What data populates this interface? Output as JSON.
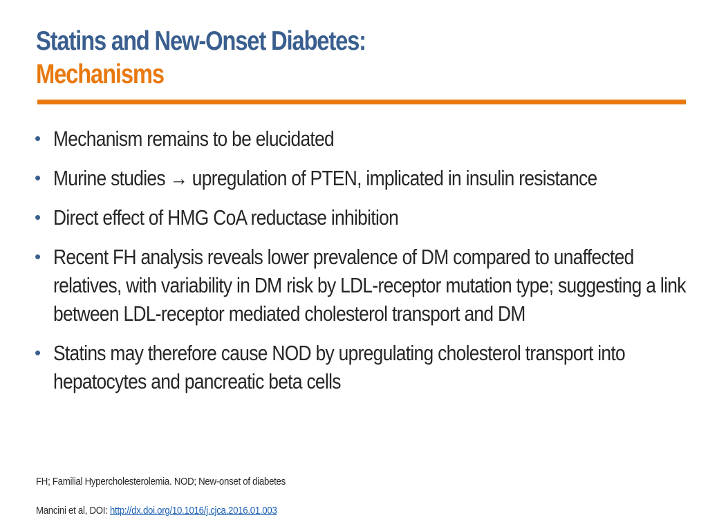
{
  "slide": {
    "title_line1": "Statins and New-Onset Diabetes:",
    "title_line2": "Mechanisms",
    "bullets": [
      "Mechanism remains to be elucidated",
      "Murine studies → upregulation of PTEN, implicated in insulin resistance",
      "Direct effect of HMG CoA reductase inhibition",
      "Recent FH analysis reveals lower prevalence of DM compared to unaffected relatives, with variability in DM risk by LDL-receptor mutation type; suggesting a link between LDL-receptor mediated cholesterol transport and DM",
      "Statins may therefore cause NOD by upregulating cholesterol transport into hepatocytes and pancreatic beta cells"
    ],
    "bullet_symbol": "•",
    "footnote_abbreviations": "FH; Familial Hypercholesterolemia. NOD; New-onset of diabetes",
    "citation_prefix": "Mancini et al, DOI: ",
    "citation_link": "http://dx.doi.org/10.1016/j.cjca.2016.01.003"
  },
  "colors": {
    "title_primary": "#3a5f8f",
    "title_accent": "#e8790f",
    "body_text": "#262626",
    "link": "#1a5fb4"
  }
}
